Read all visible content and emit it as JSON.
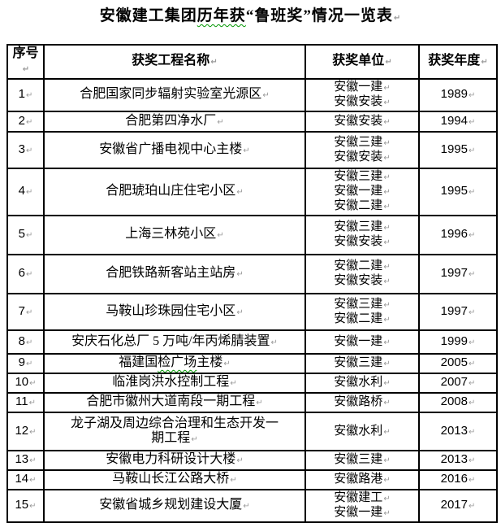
{
  "marks": {
    "paragraph": "↵"
  },
  "colors": {
    "border": "#000000",
    "text": "#000000",
    "formatting_mark": "#9a9a9a",
    "squiggle_underline": "#009600",
    "background": "#ffffff"
  },
  "title": {
    "text": "安徽建工集团历年获“鲁班奖”情况一览表",
    "squiggle": "历年获"
  },
  "table": {
    "headers": [
      "序号",
      "获奖工程名称",
      "获奖单位",
      "获奖年度"
    ],
    "rows": [
      {
        "no": "1",
        "name": "合肥国家同步辐射实验室光源区",
        "units": [
          "安徽一建",
          "安徽安装"
        ],
        "year": "1989"
      },
      {
        "no": "2",
        "name": "合肥第四净水厂",
        "units": [
          "安徽安装"
        ],
        "year": "1994"
      },
      {
        "no": "3",
        "name": "安徽省广播电视中心主楼",
        "units": [
          "安徽三建",
          "安徽安装"
        ],
        "year": "1995"
      },
      {
        "no": "4",
        "name": "合肥琥珀山庄住宅小区",
        "units": [
          "安徽三建",
          "安徽一建",
          "安徽二建"
        ],
        "year": "1995"
      },
      {
        "no": "5",
        "name": "上海三林苑小区",
        "units": [
          "安徽三建",
          "安徽安装"
        ],
        "year": "1996"
      },
      {
        "no": "6",
        "name": "合肥铁路新客站主站房",
        "units": [
          "安徽二建",
          "安徽安装"
        ],
        "year": "1997"
      },
      {
        "no": "7",
        "name": "马鞍山珍珠园住宅小区",
        "units": [
          "安徽三建",
          "安徽二建"
        ],
        "year": "1997"
      },
      {
        "no": "8",
        "name": "安庆石化总厂 5 万吨/年丙烯腈装置",
        "units": [
          "安徽一建"
        ],
        "year": "1999"
      },
      {
        "no": "9",
        "name": "福建国检广场主楼",
        "squiggle": "检广场",
        "units": [
          "安徽三建"
        ],
        "year": "2005"
      },
      {
        "no": "10",
        "name": "临淮岗洪水控制工程",
        "units": [
          "安徽水利"
        ],
        "year": "2007"
      },
      {
        "no": "11",
        "name": "合肥市徽州大道南段一期工程",
        "units": [
          "安徽路桥"
        ],
        "year": "2008"
      },
      {
        "no": "12",
        "name": "龙子湖及周边综合治理和生态开发一\n期工程",
        "units": [
          "安徽水利"
        ],
        "year": "2013"
      },
      {
        "no": "13",
        "name": "安徽电力科研设计大楼",
        "units": [
          "安徽三建"
        ],
        "year": "2013"
      },
      {
        "no": "14",
        "name": "马鞍山长江公路大桥",
        "units": [
          "安徽路港"
        ],
        "year": "2016"
      },
      {
        "no": "15",
        "name": "安徽省城乡规划建设大厦",
        "units": [
          "安徽建工",
          "安徽一建"
        ],
        "year": "2017"
      }
    ]
  }
}
